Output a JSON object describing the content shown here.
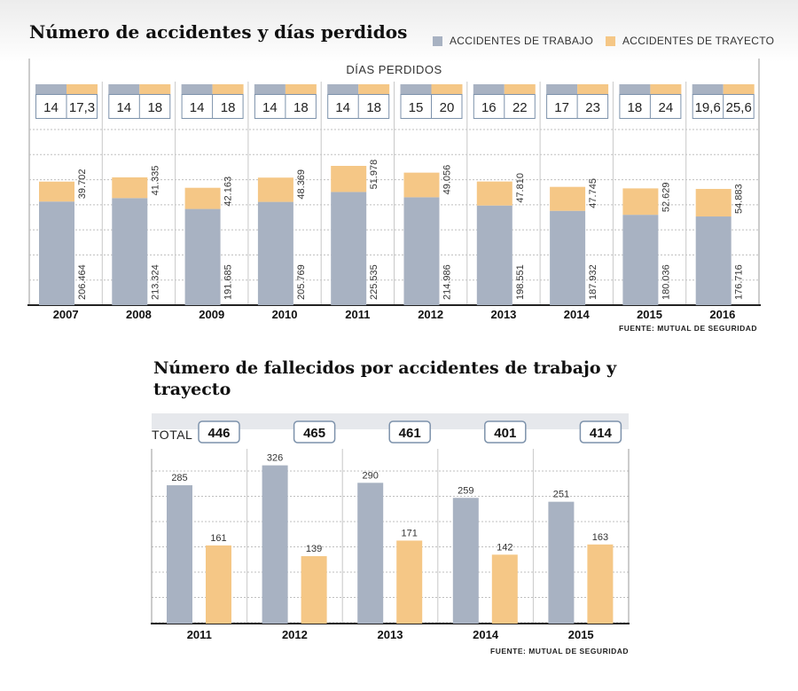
{
  "colors": {
    "trabajo": "#a8b2c2",
    "trayecto": "#f5c786",
    "grid": "#bfbfbf",
    "box_border": "#7d92ab",
    "total_bg": "#e6e8ec"
  },
  "chart1": {
    "title": "Número de accidentes y días perdidos",
    "legend": {
      "trabajo": "ACCIDENTES DE TRABAJO",
      "trayecto": "ACCIDENTES DE TRAYECTO"
    },
    "dias_header": "DÍAS PERDIDOS",
    "source": "FUENTE: MUTUAL DE SEGURIDAD"
  },
  "chart2": {
    "title": "Número de fallecidos por accidentes de trabajo y trayecto",
    "total_label": "TOTAL",
    "source": "FUENTE: MUTUAL DE SEGURIDAD"
  },
  "chart_data": [
    {
      "type": "bar",
      "stacked": true,
      "title": "Número de accidentes y días perdidos",
      "categories": [
        "2007",
        "2008",
        "2009",
        "2010",
        "2011",
        "2012",
        "2013",
        "2014",
        "2015",
        "2016"
      ],
      "series": [
        {
          "name": "ACCIDENTES DE TRABAJO",
          "values": [
            206464,
            213324,
            191685,
            205769,
            225535,
            214986,
            198551,
            187932,
            180036,
            176716
          ],
          "labels": [
            "206.464",
            "213.324",
            "191.685",
            "205.769",
            "225.535",
            "214.986",
            "198.551",
            "187.932",
            "180.036",
            "176.716"
          ]
        },
        {
          "name": "ACCIDENTES DE TRAYECTO",
          "values": [
            39702,
            41335,
            42163,
            48369,
            51978,
            49056,
            47810,
            47745,
            52629,
            54883
          ],
          "labels": [
            "39.702",
            "41.335",
            "42.163",
            "48.369",
            "51.978",
            "49.056",
            "47.810",
            "47.745",
            "52.629",
            "54.883"
          ]
        }
      ],
      "dias_perdidos": {
        "trabajo": [
          "14",
          "14",
          "14",
          "14",
          "14",
          "15",
          "16",
          "17",
          "18",
          "19,6"
        ],
        "trayecto": [
          "17,3",
          "18",
          "18",
          "18",
          "18",
          "20",
          "22",
          "23",
          "24",
          "25,6"
        ]
      },
      "ylim": [
        0,
        350000
      ],
      "grid": true
    },
    {
      "type": "bar",
      "title": "Número de fallecidos por accidentes de trabajo y trayecto",
      "categories": [
        "2011",
        "2012",
        "2013",
        "2014",
        "2015"
      ],
      "series": [
        {
          "name": "ACCIDENTES DE TRABAJO",
          "values": [
            285,
            326,
            290,
            259,
            251
          ]
        },
        {
          "name": "ACCIDENTES DE TRAYECTO",
          "values": [
            161,
            139,
            171,
            142,
            163
          ]
        }
      ],
      "totals": [
        446,
        465,
        461,
        401,
        414
      ],
      "ylim": [
        0,
        360
      ],
      "grid": true
    }
  ]
}
